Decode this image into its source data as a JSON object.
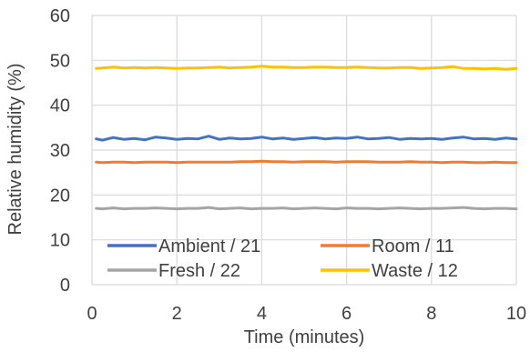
{
  "chart_data": {
    "type": "line",
    "title": "",
    "xlabel": "Time (minutes)",
    "ylabel": "Relative humidity (%)",
    "xlim": [
      0,
      10
    ],
    "ylim": [
      0,
      60
    ],
    "x_ticks": [
      "0",
      "2",
      "4",
      "6",
      "8",
      "10"
    ],
    "y_ticks": [
      "0",
      "10",
      "20",
      "30",
      "40",
      "50",
      "60"
    ],
    "grid": true,
    "legend_position": "bottom-inside",
    "x": [
      0.1,
      0.25,
      0.5,
      0.75,
      1.0,
      1.25,
      1.5,
      1.75,
      2.0,
      2.25,
      2.5,
      2.75,
      3.0,
      3.25,
      3.5,
      3.75,
      4.0,
      4.25,
      4.5,
      4.75,
      5.0,
      5.25,
      5.5,
      5.75,
      6.0,
      6.25,
      6.5,
      6.75,
      7.0,
      7.25,
      7.5,
      7.75,
      8.0,
      8.25,
      8.5,
      8.75,
      9.0,
      9.25,
      9.5,
      9.75,
      10.0
    ],
    "series": [
      {
        "name": "Ambient / 21",
        "color": "#4472c4",
        "values": [
          32.5,
          32.2,
          32.8,
          32.4,
          32.6,
          32.3,
          32.9,
          32.7,
          32.4,
          32.6,
          32.5,
          33.1,
          32.4,
          32.7,
          32.5,
          32.6,
          32.9,
          32.5,
          32.7,
          32.4,
          32.6,
          32.8,
          32.5,
          32.7,
          32.6,
          32.9,
          32.5,
          32.6,
          32.8,
          32.4,
          32.6,
          32.5,
          32.6,
          32.4,
          32.7,
          32.9,
          32.5,
          32.6,
          32.4,
          32.7,
          32.5
        ]
      },
      {
        "name": "Room / 11",
        "color": "#ed7d31",
        "values": [
          27.3,
          27.2,
          27.3,
          27.3,
          27.2,
          27.3,
          27.3,
          27.3,
          27.2,
          27.3,
          27.3,
          27.3,
          27.3,
          27.3,
          27.4,
          27.4,
          27.5,
          27.4,
          27.4,
          27.3,
          27.4,
          27.4,
          27.4,
          27.3,
          27.4,
          27.4,
          27.4,
          27.3,
          27.3,
          27.3,
          27.4,
          27.3,
          27.3,
          27.2,
          27.3,
          27.3,
          27.2,
          27.2,
          27.3,
          27.2,
          27.2
        ]
      },
      {
        "name": "Fresh / 22",
        "color": "#a5a5a5",
        "values": [
          17.0,
          16.9,
          17.1,
          16.9,
          17.0,
          17.0,
          17.1,
          17.0,
          16.9,
          17.0,
          17.0,
          17.2,
          16.9,
          17.0,
          17.1,
          16.9,
          17.0,
          17.0,
          17.1,
          16.9,
          17.0,
          17.1,
          17.0,
          16.9,
          17.1,
          17.0,
          17.0,
          16.9,
          17.0,
          17.1,
          17.0,
          16.9,
          17.0,
          17.0,
          17.1,
          17.2,
          17.0,
          16.9,
          17.0,
          17.0,
          16.9
        ]
      },
      {
        "name": "Waste / 12",
        "color": "#ffc000",
        "values": [
          48.2,
          48.3,
          48.5,
          48.3,
          48.4,
          48.3,
          48.4,
          48.3,
          48.2,
          48.3,
          48.3,
          48.4,
          48.5,
          48.3,
          48.4,
          48.5,
          48.7,
          48.5,
          48.5,
          48.4,
          48.4,
          48.5,
          48.5,
          48.4,
          48.4,
          48.5,
          48.4,
          48.3,
          48.3,
          48.4,
          48.4,
          48.2,
          48.3,
          48.4,
          48.6,
          48.2,
          48.2,
          48.1,
          48.2,
          48.0,
          48.2
        ]
      }
    ]
  },
  "colors": {
    "grid": "#d9d9d9",
    "text": "#404040"
  }
}
